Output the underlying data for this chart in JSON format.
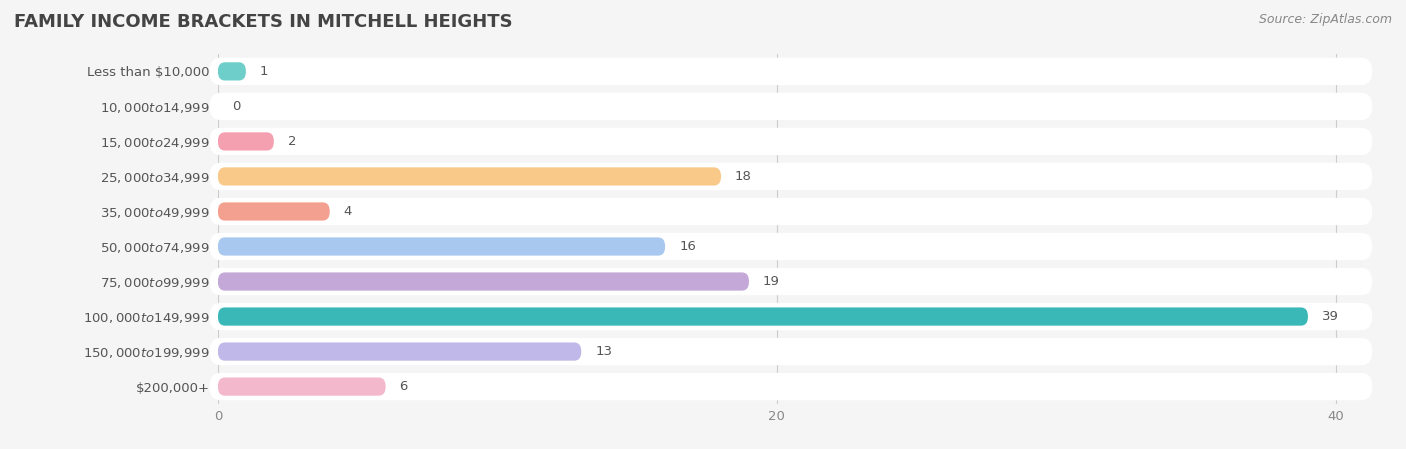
{
  "title": "FAMILY INCOME BRACKETS IN MITCHELL HEIGHTS",
  "source": "Source: ZipAtlas.com",
  "categories": [
    "Less than $10,000",
    "$10,000 to $14,999",
    "$15,000 to $24,999",
    "$25,000 to $34,999",
    "$35,000 to $49,999",
    "$50,000 to $74,999",
    "$75,000 to $99,999",
    "$100,000 to $149,999",
    "$150,000 to $199,999",
    "$200,000+"
  ],
  "values": [
    1,
    0,
    2,
    18,
    4,
    16,
    19,
    39,
    13,
    6
  ],
  "bar_colors": [
    "#6ecfca",
    "#b3b3e0",
    "#f4a0b0",
    "#f9c98a",
    "#f4a090",
    "#a8c8f0",
    "#c4a8d8",
    "#3ab8b8",
    "#c0b8e8",
    "#f4b8cc"
  ],
  "xlim": [
    0,
    41
  ],
  "xticks": [
    0,
    20,
    40
  ],
  "background_color": "#f5f5f5",
  "row_bg_color": "#ffffff",
  "title_fontsize": 13,
  "label_fontsize": 9.5,
  "value_fontsize": 9.5,
  "source_fontsize": 9,
  "title_color": "#444444",
  "label_color": "#555555",
  "value_color": "#555555",
  "source_color": "#888888",
  "grid_color": "#cccccc",
  "tick_color": "#888888"
}
